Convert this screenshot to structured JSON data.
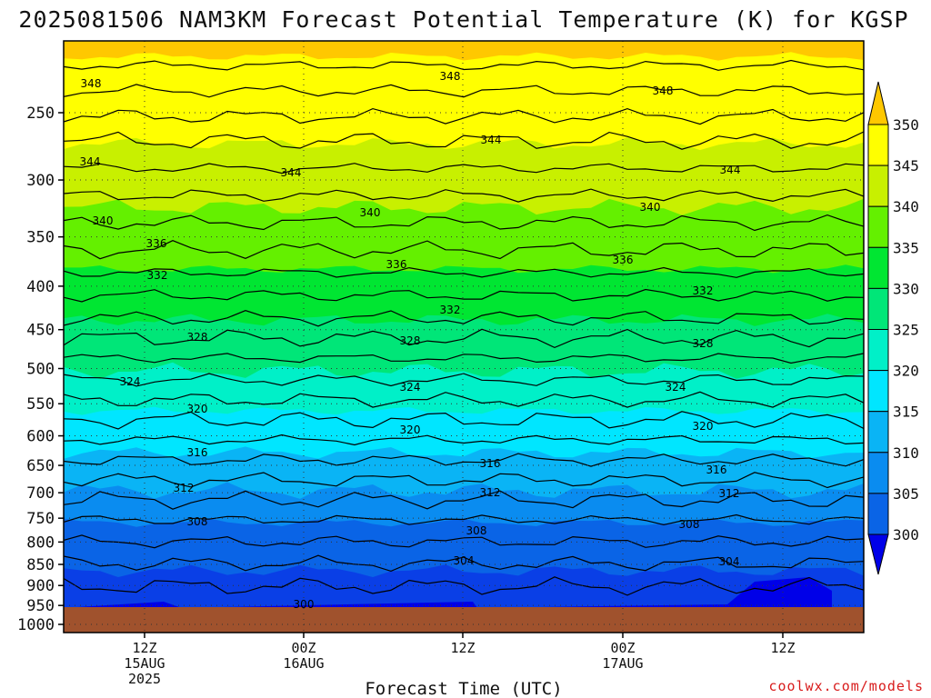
{
  "chart_data": {
    "type": "heatmap",
    "title": "2025081506 NAM3KM Forecast Potential Temperature (K) for KGSP",
    "xlabel": "Forecast Time (UTC)",
    "ylabel": "",
    "credit": "coolwx.com/models",
    "y_axis": {
      "scale": "log",
      "ticks": [
        250,
        300,
        350,
        400,
        450,
        500,
        550,
        600,
        650,
        700,
        750,
        800,
        850,
        900,
        950,
        1000
      ],
      "ylim": [
        1000,
        200
      ]
    },
    "x_axis": {
      "ticks": [
        {
          "line1": "12Z",
          "line2": "15AUG",
          "line3": "2025"
        },
        {
          "line1": "00Z",
          "line2": "16AUG",
          "line3": ""
        },
        {
          "line1": "12Z",
          "line2": "",
          "line3": ""
        },
        {
          "line1": "00Z",
          "line2": "17AUG",
          "line3": ""
        },
        {
          "line1": "12Z",
          "line2": "",
          "line3": ""
        }
      ]
    },
    "colorbar": {
      "levels": [
        300,
        305,
        310,
        315,
        320,
        325,
        330,
        335,
        340,
        345,
        350
      ],
      "colors": [
        "#0000e8",
        "#0a3fe6",
        "#0a64e6",
        "#0a8cf0",
        "#0ab4f5",
        "#00e6ff",
        "#00f0c8",
        "#00e678",
        "#00e632",
        "#64f000",
        "#c8f000",
        "#ffff00",
        "#ffc800"
      ]
    },
    "contour_levels": [
      300,
      304,
      308,
      312,
      316,
      320,
      324,
      328,
      332,
      336,
      340,
      344,
      348
    ],
    "contour_labels": [
      {
        "value": "348",
        "tag": "a"
      },
      {
        "value": "348",
        "tag": "b"
      },
      {
        "value": "348",
        "tag": "c"
      },
      {
        "value": "344",
        "tag": "a"
      },
      {
        "value": "344",
        "tag": "b"
      },
      {
        "value": "344",
        "tag": "c"
      },
      {
        "value": "344",
        "tag": "d"
      },
      {
        "value": "340",
        "tag": "a"
      },
      {
        "value": "340",
        "tag": "b"
      },
      {
        "value": "340",
        "tag": "c"
      },
      {
        "value": "336",
        "tag": "a"
      },
      {
        "value": "336",
        "tag": "b"
      },
      {
        "value": "336",
        "tag": "c"
      },
      {
        "value": "332",
        "tag": "a"
      },
      {
        "value": "332",
        "tag": "b"
      },
      {
        "value": "332",
        "tag": "c"
      },
      {
        "value": "328",
        "tag": "a"
      },
      {
        "value": "328",
        "tag": "b"
      },
      {
        "value": "328",
        "tag": "c"
      },
      {
        "value": "324",
        "tag": "a"
      },
      {
        "value": "324",
        "tag": "b"
      },
      {
        "value": "324",
        "tag": "c"
      },
      {
        "value": "320",
        "tag": "a"
      },
      {
        "value": "320",
        "tag": "b"
      },
      {
        "value": "320",
        "tag": "c"
      },
      {
        "value": "316",
        "tag": "a"
      },
      {
        "value": "316",
        "tag": "b"
      },
      {
        "value": "316",
        "tag": "c"
      },
      {
        "value": "312",
        "tag": "a"
      },
      {
        "value": "312",
        "tag": "b"
      },
      {
        "value": "312",
        "tag": "c"
      },
      {
        "value": "308",
        "tag": "a"
      },
      {
        "value": "308",
        "tag": "b"
      },
      {
        "value": "308",
        "tag": "c"
      },
      {
        "value": "304",
        "tag": "a"
      },
      {
        "value": "304",
        "tag": "b"
      },
      {
        "value": "300",
        "tag": "a"
      }
    ],
    "ground_color": "#a0522d",
    "grid": true
  }
}
